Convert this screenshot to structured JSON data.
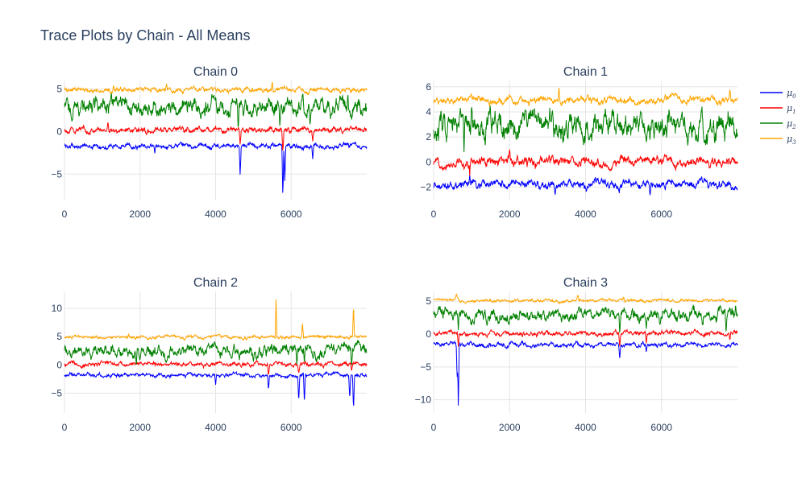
{
  "title": "Trace Plots by Chain - All Means",
  "colors": {
    "mu0": "#0000ff",
    "mu1": "#ff0000",
    "mu2": "#008000",
    "mu3": "#ffa500",
    "grid": "#e5e5e5",
    "text": "#2a3f5f"
  },
  "legend": [
    {
      "label": "μ",
      "sub": "0",
      "color": "#0000ff"
    },
    {
      "label": "μ",
      "sub": "1",
      "color": "#ff0000"
    },
    {
      "label": "μ",
      "sub": "2",
      "color": "#008000"
    },
    {
      "label": "μ",
      "sub": "3",
      "color": "#ffa500"
    }
  ],
  "chart_data": [
    {
      "type": "line",
      "title": "Chain 0",
      "xlim": [
        0,
        8000
      ],
      "ylim": [
        -8,
        6
      ],
      "x_ticks": [
        0,
        2000,
        4000,
        6000
      ],
      "y_ticks": [
        -5,
        0,
        5
      ],
      "series": [
        {
          "name": "μ0",
          "mean": -1.7,
          "noise": 0.25,
          "spikes": [
            [
              4650,
              -5.2
            ],
            [
              5780,
              -7.7
            ],
            [
              5830,
              -6.0
            ],
            [
              6570,
              -3.3
            ],
            [
              2390,
              -2.6
            ]
          ]
        },
        {
          "name": "μ1",
          "mean": 0.2,
          "noise": 0.3,
          "spikes": [
            [
              4650,
              -1.6
            ],
            [
              5780,
              -2.4
            ],
            [
              6570,
              -1.2
            ],
            [
              1150,
              1.2
            ]
          ]
        },
        {
          "name": "μ2",
          "mean": 2.9,
          "noise": 0.9,
          "spikes": [
            [
              4600,
              0.0
            ],
            [
              5700,
              0.5
            ],
            [
              6500,
              0.7
            ],
            [
              7500,
              4.5
            ],
            [
              3900,
              4.5
            ]
          ]
        },
        {
          "name": "μ3",
          "mean": 4.9,
          "noise": 0.25,
          "spikes": [
            [
              5500,
              5.9
            ],
            [
              2700,
              5.6
            ],
            [
              1300,
              5.4
            ]
          ]
        }
      ]
    },
    {
      "type": "line",
      "title": "Chain 1",
      "xlim": [
        0,
        8000
      ],
      "ylim": [
        -3,
        6.5
      ],
      "x_ticks": [
        0,
        2000,
        4000,
        6000
      ],
      "y_ticks": [
        -2,
        0,
        2,
        4,
        6
      ],
      "series": [
        {
          "name": "μ0",
          "mean": -1.8,
          "noise": 0.3,
          "spikes": [
            [
              950,
              -1.0
            ],
            [
              5700,
              -2.7
            ],
            [
              3200,
              -2.6
            ]
          ]
        },
        {
          "name": "μ1",
          "mean": 0.0,
          "noise": 0.35,
          "spikes": [
            [
              950,
              1.4
            ],
            [
              950,
              -1.2
            ],
            [
              2000,
              1.0
            ]
          ]
        },
        {
          "name": "μ2",
          "mean": 2.9,
          "noise": 0.9,
          "spikes": [
            [
              800,
              0.8
            ],
            [
              1000,
              4.6
            ],
            [
              7400,
              1.4
            ],
            [
              5600,
              1.6
            ]
          ]
        },
        {
          "name": "μ3",
          "mean": 4.9,
          "noise": 0.25,
          "spikes": [
            [
              3300,
              6.0
            ],
            [
              7800,
              5.9
            ],
            [
              6100,
              5.4
            ]
          ]
        }
      ]
    },
    {
      "type": "line",
      "title": "Chain 2",
      "xlim": [
        0,
        8000
      ],
      "ylim": [
        -8.5,
        13
      ],
      "x_ticks": [
        0,
        2000,
        4000,
        6000
      ],
      "y_ticks": [
        -5,
        0,
        5,
        10
      ],
      "series": [
        {
          "name": "μ0",
          "mean": -1.8,
          "noise": 0.3,
          "spikes": [
            [
              5400,
              -4.5
            ],
            [
              6200,
              -6.5
            ],
            [
              6350,
              -6.8
            ],
            [
              7650,
              -8.0
            ],
            [
              7550,
              -6.0
            ],
            [
              4000,
              -3.5
            ]
          ]
        },
        {
          "name": "μ1",
          "mean": 0.1,
          "noise": 0.35,
          "spikes": [
            [
              6200,
              -1.5
            ],
            [
              7600,
              -1.0
            ],
            [
              5400,
              -2.0
            ]
          ]
        },
        {
          "name": "μ2",
          "mean": 2.6,
          "noise": 0.9,
          "spikes": [
            [
              1900,
              -0.2
            ],
            [
              6150,
              0.0
            ],
            [
              6350,
              0.2
            ],
            [
              7600,
              0.0
            ],
            [
              5000,
              0.5
            ]
          ]
        },
        {
          "name": "μ3",
          "mean": 4.9,
          "noise": 0.25,
          "spikes": [
            [
              5600,
              11.6
            ],
            [
              7650,
              10.5
            ],
            [
              6300,
              7.5
            ],
            [
              1700,
              5.5
            ]
          ]
        }
      ]
    },
    {
      "type": "line",
      "title": "Chain 3",
      "xlim": [
        0,
        8000
      ],
      "ylim": [
        -12,
        6.5
      ],
      "x_ticks": [
        0,
        2000,
        4000,
        6000
      ],
      "y_ticks": [
        -10,
        -5,
        0,
        5
      ],
      "series": [
        {
          "name": "μ0",
          "mean": -1.6,
          "noise": 0.3,
          "spikes": [
            [
              650,
              -11.3
            ],
            [
              620,
              -7.0
            ],
            [
              4900,
              -3.8
            ],
            [
              5600,
              -2.7
            ]
          ]
        },
        {
          "name": "μ1",
          "mean": 0.1,
          "noise": 0.3,
          "spikes": [
            [
              650,
              -2.0
            ],
            [
              4900,
              -2.0
            ],
            [
              5600,
              -1.4
            ],
            [
              7800,
              -1.0
            ]
          ]
        },
        {
          "name": "μ2",
          "mean": 2.9,
          "noise": 0.8,
          "spikes": [
            [
              650,
              0.5
            ],
            [
              4900,
              0.0
            ],
            [
              5600,
              0.8
            ],
            [
              7700,
              0.2
            ],
            [
              7950,
              4.5
            ]
          ]
        },
        {
          "name": "μ3",
          "mean": 5.1,
          "noise": 0.2,
          "spikes": [
            [
              3800,
              6.0
            ],
            [
              600,
              6.2
            ],
            [
              5000,
              5.7
            ]
          ]
        }
      ]
    }
  ]
}
